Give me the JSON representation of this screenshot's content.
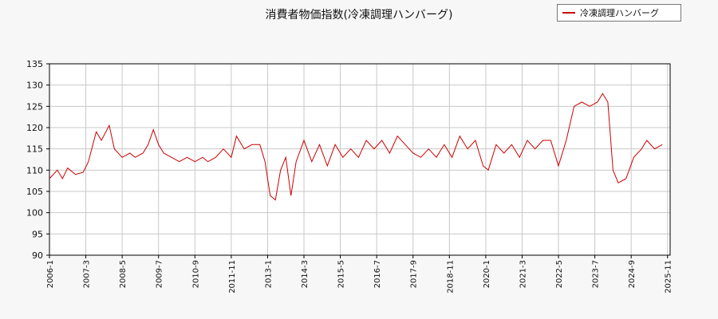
{
  "chart_data": {
    "type": "line",
    "title": "消費者物価指数(冷凍調理ハンバーグ)",
    "xlabel": "",
    "ylabel": "",
    "ylim": [
      90,
      135
    ],
    "yticks": [
      90,
      95,
      100,
      105,
      110,
      115,
      120,
      125,
      130,
      135
    ],
    "xlim": [
      "2006-01",
      "2025-12"
    ],
    "xticks": [
      "2006-1",
      "2007-3",
      "2008-5",
      "2009-7",
      "2010-9",
      "2011-11",
      "2013-1",
      "2014-3",
      "2015-5",
      "2016-7",
      "2017-9",
      "2018-11",
      "2020-1",
      "2021-3",
      "2022-5",
      "2023-7",
      "2024-9",
      "2025-11"
    ],
    "grid": true,
    "legend_position": "top-right",
    "color": "#cc0000",
    "series": [
      {
        "name": "冷凍調理ハンバーグ",
        "points": [
          [
            "2006-01",
            108
          ],
          [
            "2006-04",
            110
          ],
          [
            "2006-06",
            108
          ],
          [
            "2006-08",
            110.5
          ],
          [
            "2006-11",
            109
          ],
          [
            "2007-02",
            109.5
          ],
          [
            "2007-04",
            112
          ],
          [
            "2007-07",
            119
          ],
          [
            "2007-09",
            117
          ],
          [
            "2007-12",
            120.5
          ],
          [
            "2008-02",
            115
          ],
          [
            "2008-05",
            113
          ],
          [
            "2008-08",
            114
          ],
          [
            "2008-10",
            113
          ],
          [
            "2009-01",
            114
          ],
          [
            "2009-03",
            116
          ],
          [
            "2009-05",
            119.5
          ],
          [
            "2009-07",
            116
          ],
          [
            "2009-09",
            114
          ],
          [
            "2009-12",
            113
          ],
          [
            "2010-03",
            112
          ],
          [
            "2010-06",
            113
          ],
          [
            "2010-09",
            112
          ],
          [
            "2010-12",
            113
          ],
          [
            "2011-02",
            112
          ],
          [
            "2011-05",
            113
          ],
          [
            "2011-08",
            115
          ],
          [
            "2011-11",
            113
          ],
          [
            "2012-01",
            118
          ],
          [
            "2012-04",
            115
          ],
          [
            "2012-07",
            116
          ],
          [
            "2012-10",
            116
          ],
          [
            "2012-12",
            112
          ],
          [
            "2013-02",
            104
          ],
          [
            "2013-04",
            103
          ],
          [
            "2013-06",
            110
          ],
          [
            "2013-08",
            113
          ],
          [
            "2013-10",
            104
          ],
          [
            "2013-12",
            112
          ],
          [
            "2014-03",
            117
          ],
          [
            "2014-06",
            112
          ],
          [
            "2014-09",
            116
          ],
          [
            "2014-12",
            111
          ],
          [
            "2015-03",
            116
          ],
          [
            "2015-06",
            113
          ],
          [
            "2015-09",
            115
          ],
          [
            "2015-12",
            113
          ],
          [
            "2016-03",
            117
          ],
          [
            "2016-06",
            115
          ],
          [
            "2016-09",
            117
          ],
          [
            "2016-12",
            114
          ],
          [
            "2017-03",
            118
          ],
          [
            "2017-06",
            116
          ],
          [
            "2017-09",
            114
          ],
          [
            "2017-12",
            113
          ],
          [
            "2018-03",
            115
          ],
          [
            "2018-06",
            113
          ],
          [
            "2018-09",
            116
          ],
          [
            "2018-12",
            113
          ],
          [
            "2019-03",
            118
          ],
          [
            "2019-06",
            115
          ],
          [
            "2019-09",
            117
          ],
          [
            "2019-12",
            111
          ],
          [
            "2020-02",
            110
          ],
          [
            "2020-05",
            116
          ],
          [
            "2020-08",
            114
          ],
          [
            "2020-11",
            116
          ],
          [
            "2021-02",
            113
          ],
          [
            "2021-05",
            117
          ],
          [
            "2021-08",
            115
          ],
          [
            "2021-11",
            117
          ],
          [
            "2022-02",
            117
          ],
          [
            "2022-05",
            111
          ],
          [
            "2022-08",
            117
          ],
          [
            "2022-11",
            125
          ],
          [
            "2023-02",
            126
          ],
          [
            "2023-05",
            125
          ],
          [
            "2023-08",
            126
          ],
          [
            "2023-10",
            128
          ],
          [
            "2023-12",
            126
          ],
          [
            "2024-02",
            110
          ],
          [
            "2024-04",
            107
          ],
          [
            "2024-07",
            108
          ],
          [
            "2024-10",
            113
          ],
          [
            "2025-01",
            115
          ],
          [
            "2025-03",
            117
          ],
          [
            "2025-06",
            115
          ],
          [
            "2025-09",
            116
          ]
        ]
      }
    ]
  }
}
